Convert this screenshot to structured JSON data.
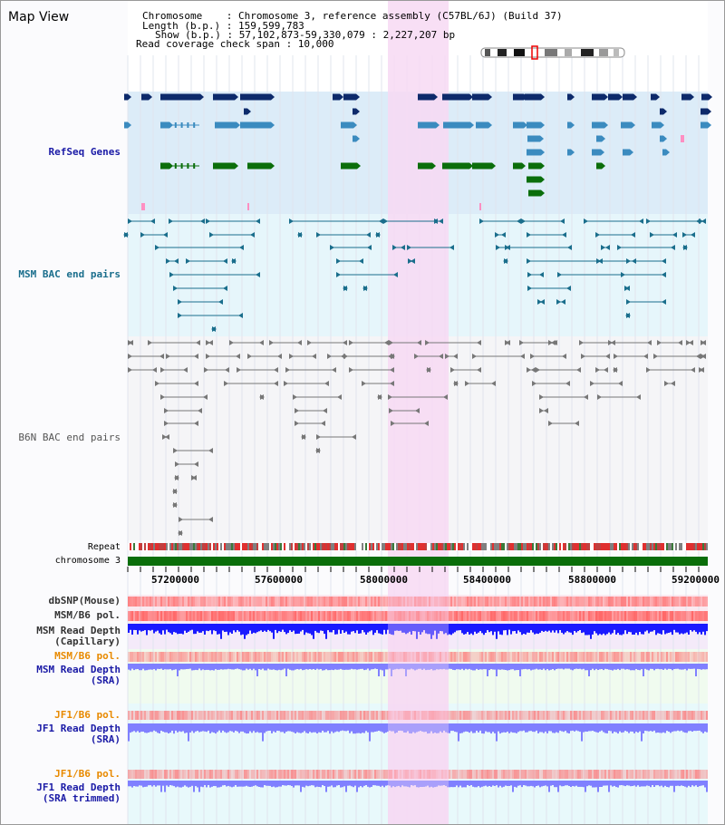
{
  "header": {
    "title": "Map View",
    "chromosome_line": "Chromosome    : Chromosome 3, reference assembly (C57BL/6J) (Build 37)",
    "length_line": "Length (b.p.) : 159,599,783",
    "show_line": "Show (b.p.) : 57,102,873-59,330,079 : 2,227,207 bp",
    "coverage_line": "Read coverage check span : 10,000"
  },
  "tracks": {
    "refseq": "RefSeq Genes",
    "msm_bac": "MSM BAC end pairs",
    "b6n_bac": "B6N BAC end pairs",
    "repeat": "Repeat",
    "chromosome": "chromosome 3",
    "dbsnp": "dbSNP(Mouse)",
    "msm_pol_1": "MSM/B6 pol.",
    "msm_depth_cap_1": "MSM Read Depth",
    "msm_depth_cap_2": "(Capillary)",
    "msm_pol_2": "MSM/B6 pol.",
    "msm_depth_sra_1": "MSM Read Depth",
    "msm_depth_sra_2": "(SRA)",
    "jf1_pol_1": "JF1/B6 pol.",
    "jf1_depth_sra_1": "JF1 Read Depth",
    "jf1_depth_sra_2": "(SRA)",
    "jf1_pol_2": "JF1/B6 pol.",
    "jf1_depth_trim_1": "JF1 Read Depth",
    "jf1_depth_trim_2": "(SRA trimmed)"
  },
  "axis": {
    "ticks": [
      "57200000",
      "57600000",
      "58000000",
      "58400000",
      "58800000",
      "59200000"
    ]
  },
  "colors": {
    "highlight": "#f7d9f3",
    "gene_dark": "#0d2a6b",
    "gene_mid": "#3b8bbf",
    "gene_green": "#0b6e0b",
    "msm_bac": "#1a6e8c",
    "b6n_bac": "#777777",
    "chromosome": "#0a6e0a",
    "depth_blue": "#1a1aff",
    "depth_light": "#8080ff",
    "pol_red": "#ff6666",
    "label_blue": "#1a1aa6",
    "label_orange": "#e88a00"
  }
}
